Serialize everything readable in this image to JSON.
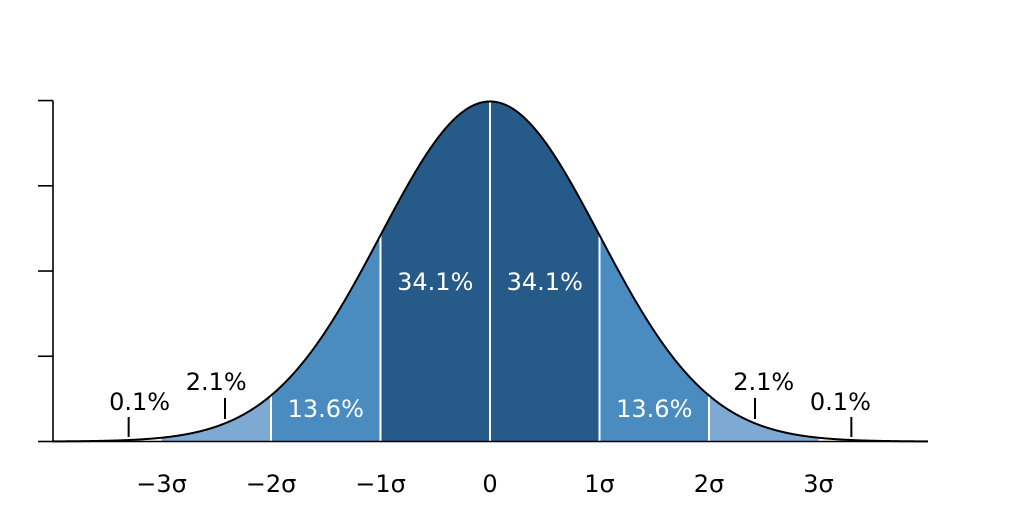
{
  "chart_data": {
    "type": "area",
    "title": "",
    "xlabel": "",
    "ylabel": "",
    "distribution": "standard normal",
    "xlim": [
      -4,
      4
    ],
    "ylim": [
      0,
      0.3989
    ],
    "y_ticks": [
      0,
      0.1,
      0.2,
      0.3,
      0.4
    ],
    "y_tick_labels_shown": false,
    "x_ticks": [
      -3,
      -2,
      -1,
      0,
      1,
      2,
      3
    ],
    "x_tick_labels": [
      "−3σ",
      "−2σ",
      "−1σ",
      "0",
      "1σ",
      "2σ",
      "3σ"
    ],
    "grid": false,
    "bands": [
      {
        "from": -3,
        "to": -2,
        "percent": "2.1%",
        "color": "#7DA9D3"
      },
      {
        "from": -2,
        "to": -1,
        "percent": "13.6%",
        "color": "#4A8BC0"
      },
      {
        "from": -1,
        "to": 0,
        "percent": "34.1%",
        "color": "#265A89"
      },
      {
        "from": 0,
        "to": 1,
        "percent": "34.1%",
        "color": "#265A89"
      },
      {
        "from": 1,
        "to": 2,
        "percent": "13.6%",
        "color": "#4A8BC0"
      },
      {
        "from": 2,
        "to": 3,
        "percent": "2.1%",
        "color": "#7DA9D3"
      }
    ],
    "tail_labels": [
      {
        "side": "left",
        "percent": "0.1%",
        "marker_x": -3.3
      },
      {
        "side": "right",
        "percent": "0.1%",
        "marker_x": 3.3
      }
    ],
    "colors": {
      "curve": "#000000",
      "divider": "#ffffff",
      "inner_label": "#ffffff",
      "outer_label": "#000000"
    }
  }
}
